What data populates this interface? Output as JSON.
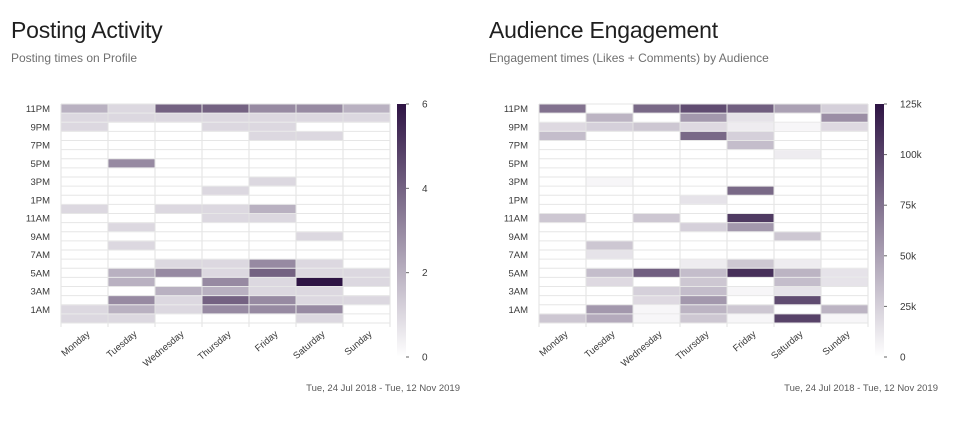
{
  "chart_data": [
    {
      "type": "heatmap",
      "title": "Posting Activity",
      "subtitle": "Posting times on Profile",
      "date_range": "Tue, 24 Jul 2018 - Tue, 12 Nov 2019",
      "x_categories": [
        "Monday",
        "Tuesday",
        "Wednesday",
        "Thursday",
        "Friday",
        "Saturday",
        "Sunday"
      ],
      "y_categories": [
        "12AM",
        "1AM",
        "2AM",
        "3AM",
        "4AM",
        "5AM",
        "6AM",
        "7AM",
        "8AM",
        "9AM",
        "10AM",
        "11AM",
        "12PM",
        "1PM",
        "2PM",
        "3PM",
        "4PM",
        "5PM",
        "6PM",
        "7PM",
        "8PM",
        "9PM",
        "10PM",
        "11PM"
      ],
      "y_tick_labels": [
        "1AM",
        "3AM",
        "5AM",
        "7AM",
        "9AM",
        "11AM",
        "1PM",
        "3PM",
        "5PM",
        "7PM",
        "9PM",
        "11PM"
      ],
      "colorbar": {
        "min": 0,
        "max": 6,
        "ticks": [
          0,
          2,
          4,
          6
        ],
        "tick_labels": [
          "0",
          "2",
          "4",
          "6"
        ]
      },
      "values": [
        [
          1,
          1,
          0,
          0,
          0,
          1,
          0
        ],
        [
          1,
          2,
          1,
          3,
          3,
          3,
          0
        ],
        [
          0,
          3,
          1,
          4,
          3,
          1,
          1
        ],
        [
          0,
          0,
          2,
          2,
          1,
          1,
          0
        ],
        [
          0,
          2,
          0,
          3,
          1,
          6,
          1
        ],
        [
          0,
          2,
          3,
          1,
          4,
          1,
          1
        ],
        [
          0,
          0,
          1,
          1,
          3,
          1,
          0
        ],
        [
          0,
          0,
          0,
          0,
          0,
          0,
          0
        ],
        [
          0,
          1,
          0,
          0,
          0,
          0,
          0
        ],
        [
          0,
          0,
          0,
          0,
          0,
          1,
          0
        ],
        [
          0,
          1,
          0,
          0,
          0,
          0,
          0
        ],
        [
          0,
          0,
          0,
          1,
          1,
          0,
          0
        ],
        [
          1,
          0,
          1,
          1,
          2,
          0,
          0
        ],
        [
          0,
          0,
          0,
          0,
          0,
          0,
          0
        ],
        [
          0,
          0,
          0,
          1,
          0,
          0,
          0
        ],
        [
          0,
          0,
          0,
          0,
          1,
          0,
          0
        ],
        [
          0,
          0,
          0,
          0,
          0,
          0,
          0
        ],
        [
          0,
          3,
          0,
          0,
          0,
          0,
          0
        ],
        [
          0,
          0,
          0,
          0,
          0,
          0,
          0
        ],
        [
          0,
          0,
          0,
          0,
          0,
          0,
          0
        ],
        [
          0,
          0,
          0,
          0,
          1,
          1,
          0
        ],
        [
          1,
          0,
          0,
          1,
          1,
          0,
          0
        ],
        [
          1,
          1,
          1,
          1,
          1,
          1,
          1
        ],
        [
          2,
          1,
          4,
          4,
          3,
          3,
          2
        ]
      ]
    },
    {
      "type": "heatmap",
      "title": "Audience Engagement",
      "subtitle": "Engagement times (Likes + Comments) by Audience",
      "date_range": "Tue, 24 Jul 2018 - Tue, 12 Nov 2019",
      "x_categories": [
        "Monday",
        "Tuesday",
        "Wednesday",
        "Thursday",
        "Friday",
        "Saturday",
        "Sunday"
      ],
      "y_categories": [
        "12AM",
        "1AM",
        "2AM",
        "3AM",
        "4AM",
        "5AM",
        "6AM",
        "7AM",
        "8AM",
        "9AM",
        "10AM",
        "11AM",
        "12PM",
        "1PM",
        "2PM",
        "3PM",
        "4PM",
        "5PM",
        "6PM",
        "7PM",
        "8PM",
        "9PM",
        "10PM",
        "11PM"
      ],
      "y_tick_labels": [
        "1AM",
        "3AM",
        "5AM",
        "7AM",
        "9AM",
        "11AM",
        "1PM",
        "3PM",
        "5PM",
        "7PM",
        "9PM",
        "11PM"
      ],
      "colorbar": {
        "min": 0,
        "max": 125000,
        "ticks": [
          0,
          25000,
          50000,
          75000,
          100000,
          125000
        ],
        "tick_labels": [
          "0",
          "25k",
          "50k",
          "75k",
          "100k",
          "125k"
        ]
      },
      "values": [
        [
          30000,
          45000,
          5000,
          30000,
          5000,
          100000,
          5000
        ],
        [
          0,
          55000,
          5000,
          40000,
          30000,
          0,
          40000
        ],
        [
          0,
          0,
          20000,
          55000,
          0,
          95000,
          0
        ],
        [
          0,
          0,
          25000,
          35000,
          5000,
          15000,
          0
        ],
        [
          0,
          20000,
          0,
          30000,
          0,
          35000,
          15000
        ],
        [
          0,
          35000,
          85000,
          35000,
          110000,
          40000,
          15000
        ],
        [
          0,
          0,
          0,
          10000,
          30000,
          10000,
          0
        ],
        [
          0,
          15000,
          0,
          0,
          0,
          0,
          0
        ],
        [
          0,
          30000,
          0,
          0,
          0,
          0,
          0
        ],
        [
          0,
          0,
          0,
          0,
          0,
          30000,
          0
        ],
        [
          0,
          0,
          0,
          25000,
          55000,
          0,
          0
        ],
        [
          30000,
          0,
          30000,
          0,
          105000,
          0,
          0
        ],
        [
          0,
          0,
          0,
          0,
          0,
          0,
          0
        ],
        [
          0,
          0,
          0,
          15000,
          0,
          0,
          0
        ],
        [
          0,
          0,
          0,
          0,
          80000,
          0,
          0
        ],
        [
          0,
          5000,
          0,
          0,
          0,
          0,
          0
        ],
        [
          0,
          0,
          0,
          0,
          0,
          0,
          0
        ],
        [
          0,
          0,
          0,
          0,
          0,
          0,
          0
        ],
        [
          0,
          0,
          0,
          0,
          0,
          10000,
          0
        ],
        [
          0,
          0,
          0,
          0,
          35000,
          0,
          0
        ],
        [
          35000,
          0,
          0,
          80000,
          25000,
          0,
          0
        ],
        [
          20000,
          25000,
          30000,
          20000,
          10000,
          5000,
          20000
        ],
        [
          0,
          40000,
          0,
          55000,
          15000,
          0,
          60000
        ],
        [
          75000,
          0,
          80000,
          95000,
          85000,
          50000,
          25000
        ]
      ]
    }
  ]
}
